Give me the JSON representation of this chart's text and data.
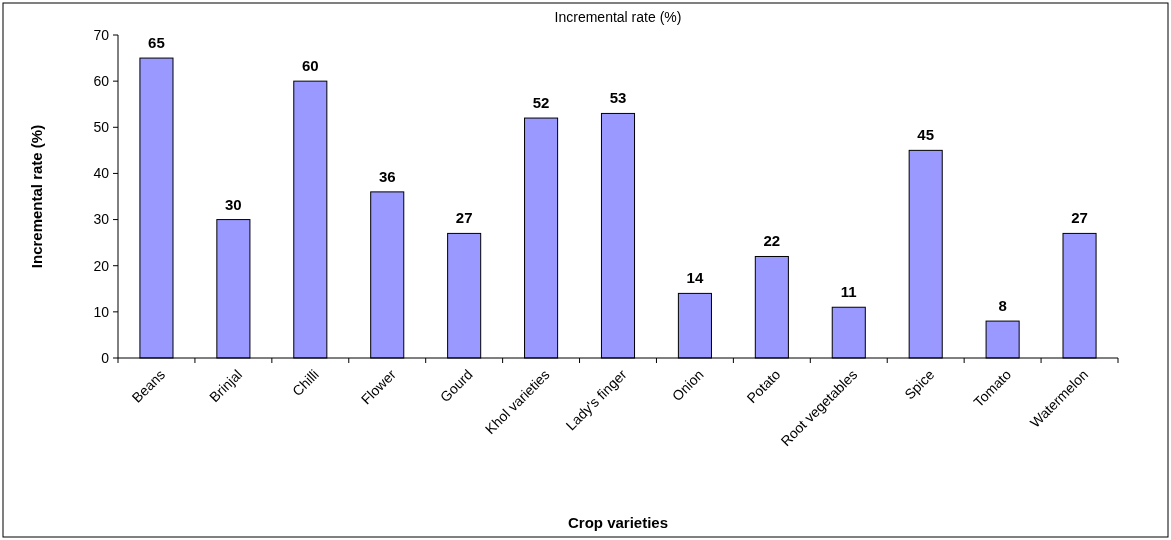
{
  "chart_data": {
    "type": "bar",
    "title": "Incremental rate (%)",
    "xlabel": "Crop varieties",
    "ylabel": "Incremental rate (%)",
    "categories": [
      "Beans",
      "Brinjal",
      "Chilli",
      "Flower",
      "Gourd",
      "Khol varieties",
      "Lady's finger",
      "Onion",
      "Potato",
      "Root vegetables",
      "Spice",
      "Tomato",
      "Watermelon"
    ],
    "values": [
      65,
      30,
      60,
      36,
      27,
      52,
      53,
      14,
      22,
      11,
      45,
      8,
      27
    ],
    "color": "#9999ff",
    "ylim": [
      0,
      70
    ],
    "yticks": [
      0,
      10,
      20,
      30,
      40,
      50,
      60,
      70
    ],
    "data_labels": true,
    "grid": false
  }
}
